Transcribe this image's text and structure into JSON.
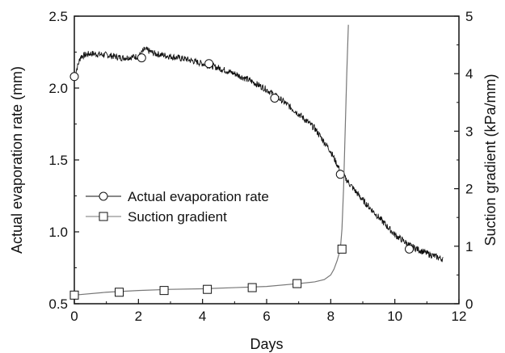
{
  "chart_data": {
    "type": "line",
    "xlabel": "Days",
    "ylabel_left": "Actual evaporation rate (mm)",
    "ylabel_right": "Suction gradient (kPa/mm)",
    "xlim": [
      0,
      12
    ],
    "ylim_left": [
      0.5,
      2.5
    ],
    "ylim_right": [
      0,
      5
    ],
    "x_ticks": [
      "0",
      "2",
      "4",
      "6",
      "8",
      "10",
      "12"
    ],
    "y_left_ticks": [
      "0.5",
      "1.0",
      "1.5",
      "2.0",
      "2.5"
    ],
    "y_right_ticks": [
      "0",
      "1",
      "2",
      "3",
      "4",
      "5"
    ],
    "grid": false,
    "legend_position": "center-left",
    "series": [
      {
        "name": "Actual evaporation rate",
        "axis": "left",
        "marker": "circle",
        "color": "#111111",
        "x": [
          0.0,
          0.2,
          0.5,
          1.0,
          1.5,
          2.0,
          2.2,
          2.5,
          3.0,
          3.5,
          4.0,
          4.5,
          5.0,
          5.5,
          6.0,
          6.5,
          7.0,
          7.5,
          8.0,
          8.3,
          8.6,
          9.0,
          9.5,
          10.0,
          10.5,
          11.0,
          11.5
        ],
        "y": [
          2.08,
          2.22,
          2.24,
          2.23,
          2.21,
          2.22,
          2.27,
          2.24,
          2.22,
          2.2,
          2.17,
          2.14,
          2.1,
          2.05,
          1.99,
          1.91,
          1.82,
          1.72,
          1.56,
          1.42,
          1.33,
          1.22,
          1.1,
          0.98,
          0.9,
          0.85,
          0.81
        ],
        "marker_x": [
          0.0,
          2.1,
          4.2,
          6.25,
          8.3,
          10.45
        ],
        "marker_y": [
          2.08,
          2.21,
          2.17,
          1.93,
          1.4,
          0.88
        ]
      },
      {
        "name": "Suction gradient",
        "axis": "right",
        "marker": "square",
        "color": "#777777",
        "x": [
          0.0,
          1.0,
          2.0,
          3.0,
          4.0,
          5.0,
          6.0,
          7.0,
          7.5,
          7.8,
          8.0,
          8.1,
          8.2,
          8.3,
          8.35,
          8.4,
          8.45,
          8.5,
          8.55
        ],
        "y": [
          0.15,
          0.2,
          0.23,
          0.25,
          0.26,
          0.28,
          0.3,
          0.35,
          0.38,
          0.42,
          0.5,
          0.6,
          0.75,
          0.95,
          1.3,
          2.0,
          3.0,
          4.0,
          4.85
        ],
        "marker_x": [
          0.0,
          1.4,
          2.8,
          4.15,
          5.55,
          6.95,
          8.35
        ],
        "marker_y": [
          0.15,
          0.2,
          0.23,
          0.25,
          0.28,
          0.35,
          0.95
        ]
      }
    ]
  }
}
